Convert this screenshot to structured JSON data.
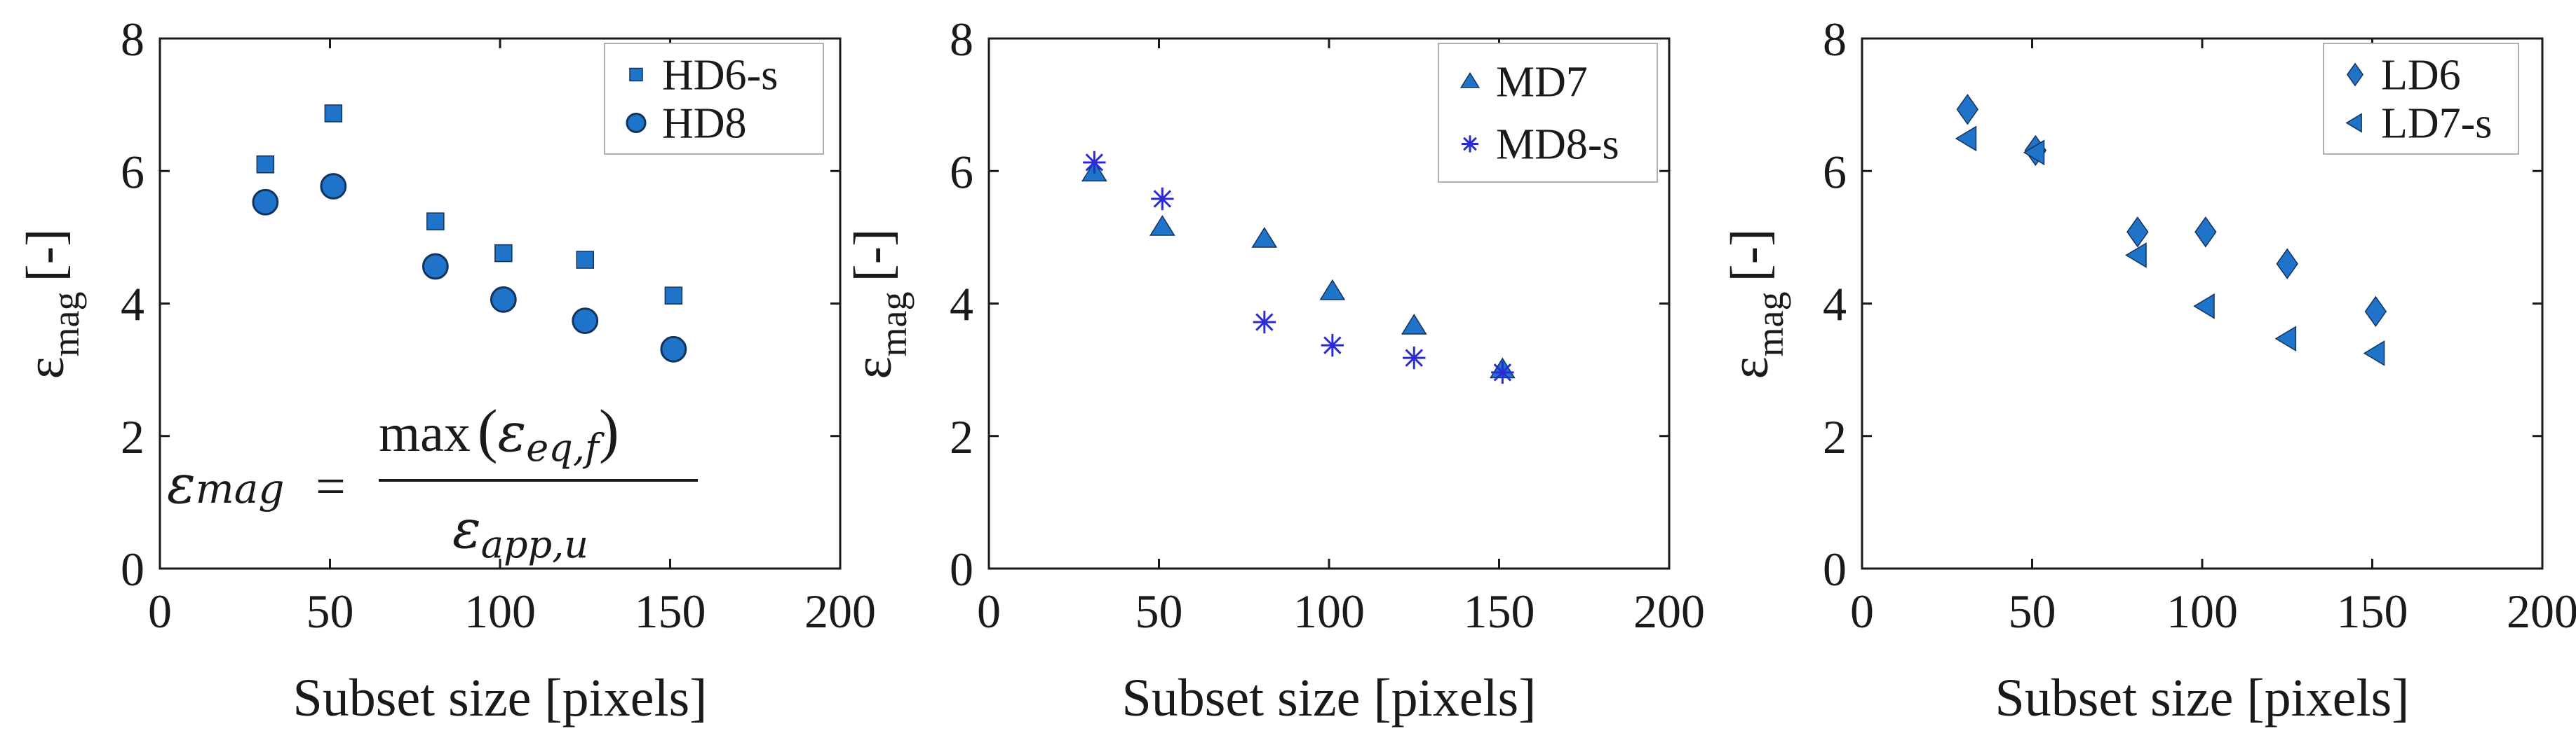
{
  "colors": {
    "marker_fill": "#1f73c8",
    "marker_edge": "#12335e",
    "star": "#2b2bd6",
    "axis": "#1a1a1a",
    "legend_border": "#b0b0b0"
  },
  "chart_data": [
    {
      "type": "scatter",
      "xlabel": "Subset size [pixels]",
      "ylabel": "ε",
      "ylabel_sub": "mag",
      "ylabel_unit": "[-]",
      "xlim": [
        0,
        200
      ],
      "ylim": [
        0,
        8
      ],
      "xticks": [
        0,
        50,
        100,
        150,
        200
      ],
      "yticks": [
        0,
        2,
        4,
        6,
        8
      ],
      "legend_position": "top-right",
      "annotation": {
        "lhs": "ε",
        "lhs_sub": "mag",
        "eq": "=",
        "num_fn": "max",
        "num_eps": "ε",
        "num_sub": "eq,f",
        "den_eps": "ε",
        "den_sub": "app,u"
      },
      "series": [
        {
          "name": "HD6-s",
          "marker": "square",
          "x": [
            31,
            51,
            81,
            101,
            125,
            151
          ],
          "y": [
            6.1,
            6.87,
            5.24,
            4.76,
            4.66,
            4.12
          ]
        },
        {
          "name": "HD8",
          "marker": "circle",
          "x": [
            31,
            51,
            81,
            101,
            125,
            151
          ],
          "y": [
            5.53,
            5.77,
            4.56,
            4.06,
            3.74,
            3.31
          ]
        }
      ]
    },
    {
      "type": "scatter",
      "xlabel": "Subset size [pixels]",
      "ylabel": "ε",
      "ylabel_sub": "mag",
      "ylabel_unit": "[-]",
      "xlim": [
        0,
        200
      ],
      "ylim": [
        0,
        8
      ],
      "xticks": [
        0,
        50,
        100,
        150,
        200
      ],
      "yticks": [
        0,
        2,
        4,
        6,
        8
      ],
      "legend_position": "top-right",
      "series": [
        {
          "name": "MD7",
          "marker": "triangle",
          "x": [
            31,
            51,
            81,
            101,
            125,
            151
          ],
          "y": [
            5.97,
            5.15,
            4.97,
            4.18,
            3.66,
            3.0
          ]
        },
        {
          "name": "MD8-s",
          "marker": "star",
          "x": [
            31,
            51,
            81,
            101,
            125,
            151
          ],
          "y": [
            6.13,
            5.58,
            3.72,
            3.37,
            3.18,
            2.96
          ]
        }
      ]
    },
    {
      "type": "scatter",
      "xlabel": "Subset size [pixels]",
      "ylabel": "ε",
      "ylabel_sub": "mag",
      "ylabel_unit": "[-]",
      "xlim": [
        0,
        200
      ],
      "ylim": [
        0,
        8
      ],
      "xticks": [
        0,
        50,
        100,
        150,
        200
      ],
      "yticks": [
        0,
        2,
        4,
        6,
        8
      ],
      "legend_position": "top-right",
      "series": [
        {
          "name": "LD6",
          "marker": "diamond",
          "x": [
            31,
            51,
            81,
            101,
            125,
            151
          ],
          "y": [
            6.93,
            6.31,
            5.08,
            5.08,
            4.6,
            3.88
          ]
        },
        {
          "name": "LD7-s",
          "marker": "triangle-left",
          "x": [
            31,
            51,
            81,
            101,
            125,
            151
          ],
          "y": [
            6.49,
            6.28,
            4.73,
            3.96,
            3.47,
            3.25
          ]
        }
      ]
    }
  ]
}
